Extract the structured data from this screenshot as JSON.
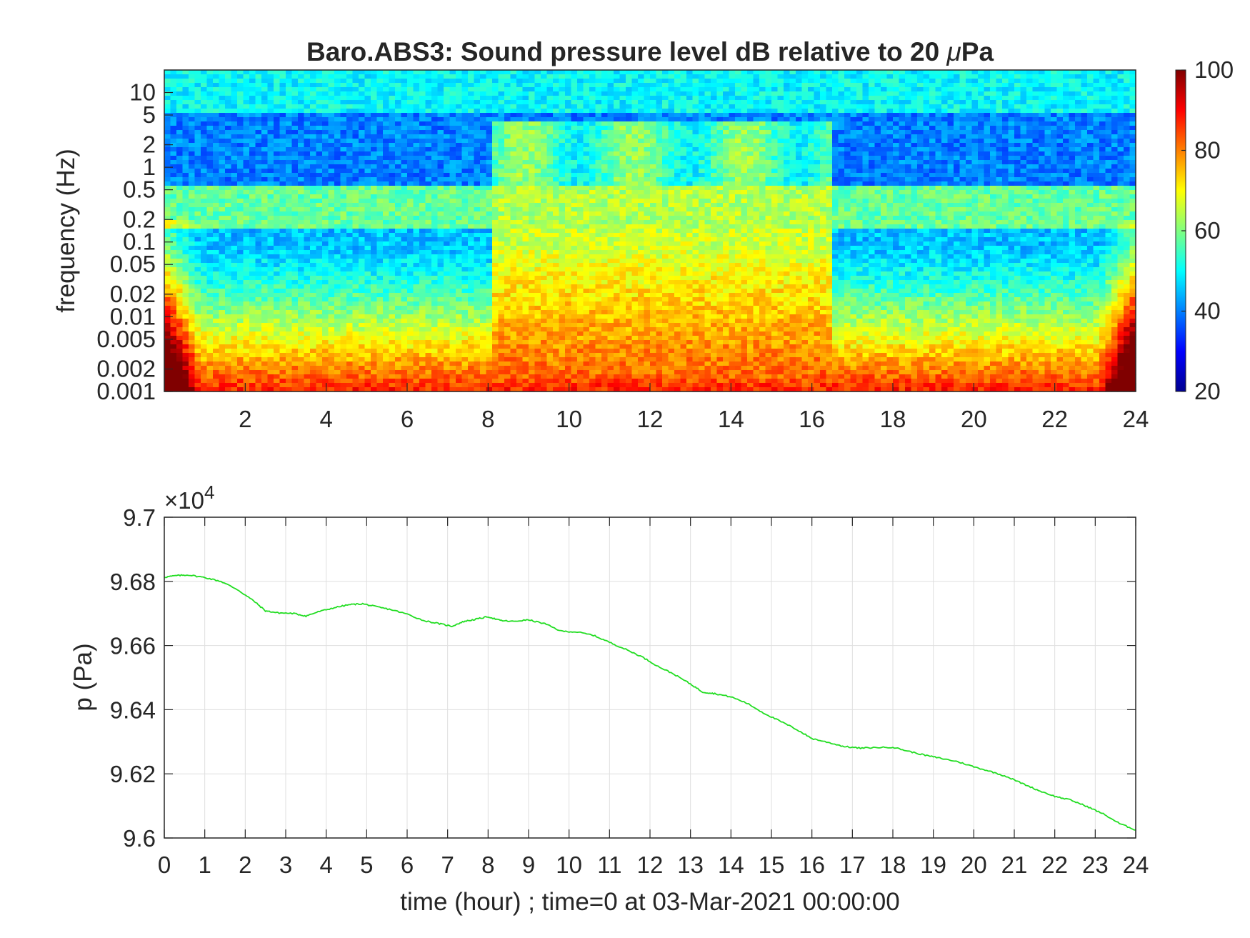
{
  "chart_data": [
    {
      "type": "heatmap",
      "title_main": "Baro.ABS3: Sound pressure level dB relative to 20 ",
      "title_mu": "μ",
      "title_unit": "Pa",
      "ylabel": "frequency (Hz)",
      "yscale": "log",
      "xlim": [
        0,
        24
      ],
      "ylim": [
        0.001,
        20
      ],
      "x_ticks": [
        2,
        4,
        6,
        8,
        10,
        12,
        14,
        16,
        18,
        20,
        22,
        24
      ],
      "x_tick_labels": [
        "2",
        "4",
        "6",
        "8",
        "10",
        "12",
        "14",
        "16",
        "18",
        "20",
        "22",
        "24"
      ],
      "y_ticks": [
        0.001,
        0.002,
        0.005,
        0.01,
        0.02,
        0.05,
        0.1,
        0.2,
        0.5,
        1,
        2,
        5,
        10
      ],
      "y_tick_labels": [
        "0.001",
        "0.002",
        "0.005",
        "0.01",
        "0.02",
        "0.05",
        "0.1",
        "0.2",
        "0.5",
        "1",
        "2",
        "5",
        "10"
      ],
      "colormap": "jet",
      "colorbar": {
        "range": [
          20,
          100
        ],
        "ticks": [
          20,
          40,
          60,
          80,
          100
        ],
        "tick_labels": [
          "20",
          "40",
          "60",
          "80",
          "100"
        ]
      },
      "active_period_hours": [
        8.1,
        16.5
      ],
      "band_edges_hz": [
        0.15,
        0.6,
        5
      ]
    },
    {
      "type": "line",
      "ylabel": "p (Pa)",
      "xlabel": "time (hour) ; time=0 at 03-Mar-2021 00:00:00",
      "exponent_base": "×10",
      "exponent_power": "4",
      "xlim": [
        0,
        24
      ],
      "ylim": [
        96000,
        97000
      ],
      "grid": true,
      "line_color": "#22dd22",
      "x_ticks": [
        0,
        1,
        2,
        3,
        4,
        5,
        6,
        7,
        8,
        9,
        10,
        11,
        12,
        13,
        14,
        15,
        16,
        17,
        18,
        19,
        20,
        21,
        22,
        23,
        24
      ],
      "x_tick_labels": [
        "0",
        "1",
        "2",
        "3",
        "4",
        "5",
        "6",
        "7",
        "8",
        "9",
        "10",
        "11",
        "12",
        "13",
        "14",
        "15",
        "16",
        "17",
        "18",
        "19",
        "20",
        "21",
        "22",
        "23",
        "24"
      ],
      "y_ticks": [
        96000,
        96200,
        96400,
        96600,
        96800,
        97000
      ],
      "y_tick_labels": [
        "9.6",
        "9.62",
        "9.64",
        "9.66",
        "9.68",
        "9.7"
      ],
      "x": [
        0,
        0.3,
        0.6,
        1,
        1.4,
        1.8,
        2.2,
        2.5,
        2.8,
        3.2,
        3.5,
        3.8,
        4.2,
        4.6,
        4.9,
        5.2,
        5.6,
        6,
        6.4,
        6.8,
        7.1,
        7.4,
        7.7,
        8,
        8.3,
        8.6,
        9,
        9.4,
        9.8,
        10.2,
        10.6,
        11,
        11.4,
        11.8,
        12.2,
        12.6,
        13,
        13.3,
        13.6,
        14,
        14.4,
        14.8,
        15.2,
        15.6,
        16,
        16.4,
        16.8,
        17.2,
        17.6,
        18,
        18.4,
        18.8,
        19.2,
        19.6,
        20,
        20.4,
        20.8,
        21.2,
        21.6,
        22,
        22.4,
        22.8,
        23.2,
        23.6,
        24
      ],
      "y": [
        96813,
        96818,
        96820,
        96812,
        96800,
        96775,
        96740,
        96708,
        96702,
        96700,
        96692,
        96705,
        96718,
        96728,
        96730,
        96722,
        96712,
        96698,
        96678,
        96668,
        96660,
        96675,
        96682,
        96690,
        96678,
        96675,
        96680,
        96668,
        96645,
        96642,
        96632,
        96610,
        96588,
        96565,
        96535,
        96510,
        96480,
        96455,
        96450,
        96440,
        96420,
        96390,
        96365,
        96340,
        96310,
        96298,
        96285,
        96280,
        96282,
        96283,
        96270,
        96258,
        96248,
        96238,
        96222,
        96208,
        96192,
        96170,
        96148,
        96130,
        96118,
        96098,
        96075,
        96045,
        96025
      ]
    }
  ]
}
